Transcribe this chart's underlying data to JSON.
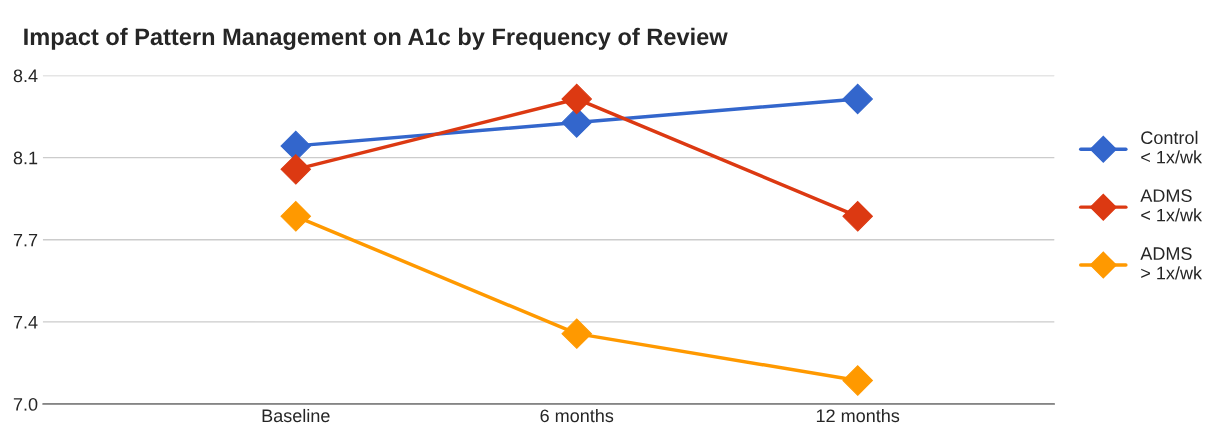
{
  "chart_data": {
    "type": "line",
    "title": "Impact of Pattern Management on A1c by Frequency of Review",
    "categories": [
      "Baseline",
      "6 months",
      "12 months"
    ],
    "series": [
      {
        "name": "Control\n< 1x/wk",
        "color": "#3366cc",
        "values": [
          8.1,
          8.2,
          8.3
        ]
      },
      {
        "name": "ADMS\n< 1x/wk",
        "color": "#dc3912",
        "values": [
          8.0,
          8.3,
          7.8
        ]
      },
      {
        "name": "ADMS\n> 1x/wk",
        "color": "#ff9900",
        "values": [
          7.8,
          7.3,
          7.1
        ]
      }
    ],
    "ylim": [
      7.0,
      8.4
    ],
    "yticks": [
      {
        "value": 7.0,
        "label": "7.0"
      },
      {
        "value": 7.35,
        "label": "7.4"
      },
      7.7,
      {
        "value": 8.05,
        "label": "8.1"
      },
      8.4
    ],
    "grid": "y",
    "legend": "right",
    "marker": "diamond",
    "line_style": "solid"
  }
}
